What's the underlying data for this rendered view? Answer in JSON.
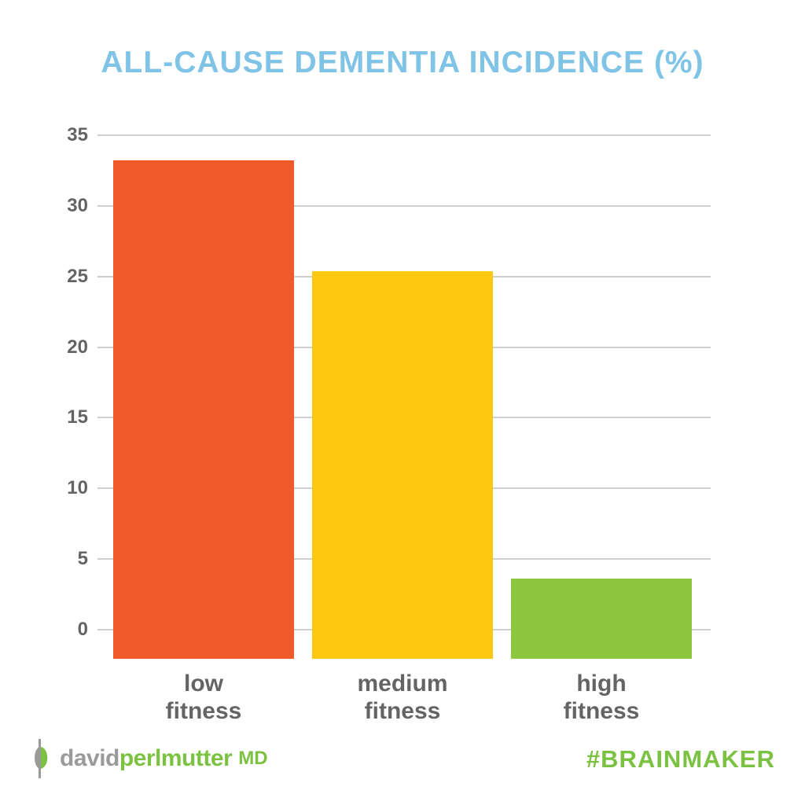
{
  "title": "ALL-CAUSE DEMENTIA INCIDENCE (%)",
  "colors": {
    "title": "#7fc3e6",
    "low": "#f05a2a",
    "medium": "#fec80f",
    "high": "#8dc63f",
    "gridline": "#cfcfcf",
    "axis_text": "#646464",
    "brand_green": "#7cc242",
    "brand_grey": "#9a9a9a"
  },
  "y_ticks": [
    "35",
    "30",
    "25",
    "20",
    "15",
    "10",
    "5",
    "0"
  ],
  "categories": [
    {
      "line1": "low",
      "line2": "fitness"
    },
    {
      "line1": "medium",
      "line2": "fitness"
    },
    {
      "line1": "high",
      "line2": "fitness"
    }
  ],
  "footer": {
    "logo_grey": "david",
    "logo_green": "perlmutter",
    "logo_suffix": "MD",
    "hashtag": "#BRAINMAKER"
  },
  "chart_data": {
    "type": "bar",
    "title": "ALL-CAUSE DEMENTIA INCIDENCE (%)",
    "categories": [
      "low fitness",
      "medium fitness",
      "high fitness"
    ],
    "values": [
      33.2,
      25.4,
      3.6
    ],
    "colors": [
      "#f05a2a",
      "#fec80f",
      "#8dc63f"
    ],
    "xlabel": "",
    "ylabel": "",
    "ylim": [
      0,
      35
    ],
    "yticks": [
      0,
      5,
      10,
      15,
      20,
      25,
      30,
      35
    ],
    "grid": true,
    "legend": null
  }
}
